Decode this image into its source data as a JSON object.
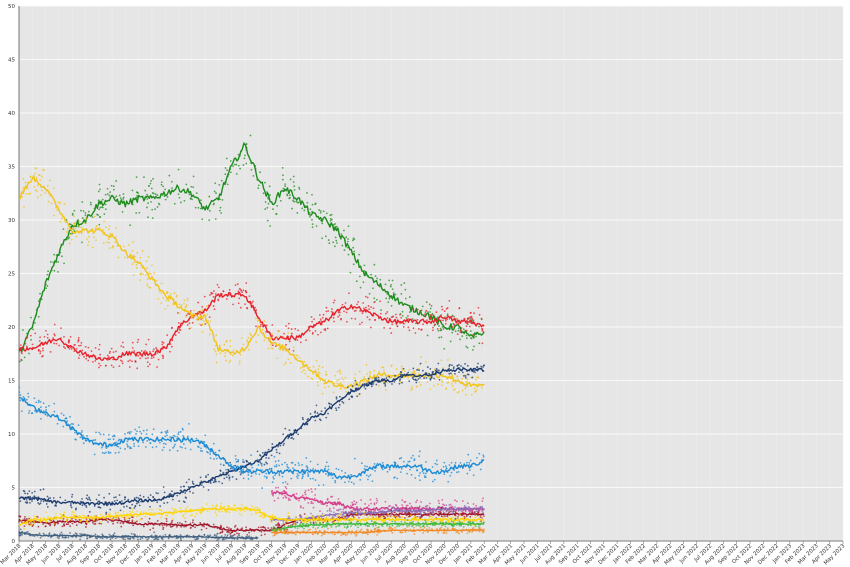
{
  "chart_data": {
    "type": "line",
    "title": "",
    "xlabel": "",
    "ylabel": "",
    "ylim": [
      0,
      50
    ],
    "yticks": [
      0,
      5,
      10,
      15,
      20,
      25,
      30,
      35,
      40,
      45,
      50
    ],
    "grid": true,
    "legend": "none",
    "background_color": "#e6e6e6",
    "x_start_month": "Mar 2018",
    "data_end_month": "Feb 2021",
    "x_tick_labels": [
      "Mar 2018",
      "Apr 2018",
      "May 2018",
      "Jun 2018",
      "Jul 2018",
      "Aug 2018",
      "Sep 2018",
      "Oct 2018",
      "Nov 2018",
      "Dec 2018",
      "Jan 2019",
      "Feb 2019",
      "Mar 2019",
      "Apr 2019",
      "May 2019",
      "Jun 2019",
      "Jul 2019",
      "Aug 2019",
      "Sep 2019",
      "Oct 2019",
      "Nov 2019",
      "Dec 2019",
      "Jan 2020",
      "Feb 2020",
      "Mar 2020",
      "Apr 2020",
      "May 2020",
      "Jun 2020",
      "Jul 2020",
      "Aug 2020",
      "Sep 2020",
      "Oct 2020",
      "Nov 2020",
      "Dec 2020",
      "Jan 2021",
      "Feb 2021",
      "Mar 2021",
      "Apr 2021",
      "May 2021",
      "Jun 2021",
      "Jul 2021",
      "Aug 2021",
      "Sep 2021",
      "Oct 2021",
      "Nov 2021",
      "Dec 2021",
      "Jan 2022",
      "Feb 2022",
      "Mar 2022",
      "Apr 2022",
      "May 2022",
      "Jun 2022",
      "Jul 2022",
      "Aug 2022",
      "Sep 2022",
      "Oct 2022",
      "Nov 2022",
      "Dec 2022",
      "Jan 2023",
      "Feb 2023",
      "Mar 2023",
      "Apr 2023",
      "May 2023"
    ],
    "series": [
      {
        "color": "#1e8c1e",
        "x": [
          "Mar 2018",
          "Apr 2018",
          "May 2018",
          "Jun 2018",
          "Jul 2018",
          "Aug 2018",
          "Sep 2018",
          "Oct 2018",
          "Nov 2018",
          "Dec 2018",
          "Jan 2019",
          "Feb 2019",
          "Mar 2019",
          "Apr 2019",
          "May 2019",
          "Jun 2019",
          "Jul 2019",
          "Aug 2019",
          "Sep 2019",
          "Oct 2019",
          "Nov 2019",
          "Dec 2019",
          "Jan 2020",
          "Feb 2020",
          "Mar 2020",
          "Apr 2020",
          "May 2020",
          "Jun 2020",
          "Jul 2020",
          "Aug 2020",
          "Sep 2020",
          "Oct 2020",
          "Nov 2020",
          "Dec 2020",
          "Jan 2021",
          "Feb 2021"
        ],
        "values": [
          17.5,
          20,
          24,
          27,
          29.5,
          30,
          31.5,
          32,
          31.5,
          32,
          32,
          32.5,
          33,
          32.5,
          31,
          32,
          35,
          37,
          34,
          31.5,
          33,
          32,
          30.5,
          30,
          29,
          27,
          25,
          24,
          23,
          22,
          21.5,
          21,
          20,
          20,
          19,
          19.5
        ],
        "scatter_spread": 1.8
      },
      {
        "color": "#e8202a",
        "x": [
          "Mar 2018",
          "Apr 2018",
          "May 2018",
          "Jun 2018",
          "Jul 2018",
          "Aug 2018",
          "Sep 2018",
          "Oct 2018",
          "Nov 2018",
          "Dec 2018",
          "Jan 2019",
          "Feb 2019",
          "Mar 2019",
          "Apr 2019",
          "May 2019",
          "Jun 2019",
          "Jul 2019",
          "Aug 2019",
          "Sep 2019",
          "Oct 2019",
          "Nov 2019",
          "Dec 2019",
          "Jan 2020",
          "Feb 2020",
          "Mar 2020",
          "Apr 2020",
          "May 2020",
          "Jun 2020",
          "Jul 2020",
          "Aug 2020",
          "Sep 2020",
          "Oct 2020",
          "Nov 2020",
          "Dec 2020",
          "Jan 2021",
          "Feb 2021"
        ],
        "values": [
          18,
          18,
          18.5,
          19,
          18,
          17.5,
          17,
          17,
          17.5,
          17.5,
          17.5,
          18,
          20,
          21,
          21.5,
          23,
          23,
          23,
          21,
          19,
          19,
          19,
          20,
          20.5,
          21.5,
          22,
          21.5,
          21,
          20.5,
          20.5,
          20.5,
          20.5,
          21,
          20.5,
          20.5,
          20
        ],
        "scatter_spread": 1.3
      },
      {
        "color": "#f2c318",
        "x": [
          "Mar 2018",
          "Apr 2018",
          "May 2018",
          "Jun 2018",
          "Jul 2018",
          "Aug 2018",
          "Sep 2018",
          "Oct 2018",
          "Nov 2018",
          "Dec 2018",
          "Jan 2019",
          "Feb 2019",
          "Mar 2019",
          "Apr 2019",
          "May 2019",
          "Jun 2019",
          "Jul 2019",
          "Aug 2019",
          "Sep 2019",
          "Oct 2019",
          "Nov 2019",
          "Dec 2019",
          "Jan 2020",
          "Feb 2020",
          "Mar 2020",
          "Apr 2020",
          "May 2020",
          "Jun 2020",
          "Jul 2020",
          "Aug 2020",
          "Sep 2020",
          "Oct 2020",
          "Nov 2020",
          "Dec 2020",
          "Jan 2021",
          "Feb 2021"
        ],
        "values": [
          32,
          34,
          33,
          31,
          29,
          29,
          29,
          28.5,
          27,
          26,
          24.5,
          23,
          22,
          21,
          21,
          18,
          17.5,
          18,
          20,
          18.5,
          18,
          17,
          16,
          15,
          14.5,
          14.5,
          15,
          15.5,
          15.5,
          15.5,
          15.5,
          15.5,
          15.5,
          15,
          14.5,
          14.5
        ],
        "scatter_spread": 1.4
      },
      {
        "color": "#1a3a6e",
        "x": [
          "Mar 2018",
          "Apr 2018",
          "May 2018",
          "Jun 2018",
          "Jul 2018",
          "Aug 2018",
          "Sep 2018",
          "Oct 2018",
          "Nov 2018",
          "Dec 2018",
          "Jan 2019",
          "Feb 2019",
          "Mar 2019",
          "Apr 2019",
          "May 2019",
          "Jun 2019",
          "Jul 2019",
          "Aug 2019",
          "Sep 2019",
          "Oct 2019",
          "Nov 2019",
          "Dec 2019",
          "Jan 2020",
          "Feb 2020",
          "Mar 2020",
          "Apr 2020",
          "May 2020",
          "Jun 2020",
          "Jul 2020",
          "Aug 2020",
          "Sep 2020",
          "Oct 2020",
          "Nov 2020",
          "Dec 2020",
          "Jan 2021",
          "Feb 2021"
        ],
        "values": [
          4,
          4,
          3.8,
          3.6,
          3.6,
          3.5,
          3.5,
          3.5,
          3.6,
          3.8,
          3.8,
          4,
          4.5,
          5,
          5.5,
          6,
          6.5,
          7,
          7.5,
          8.5,
          9.5,
          10.5,
          11.5,
          12,
          13,
          14,
          14.5,
          15,
          15,
          15.5,
          15.5,
          15.5,
          16,
          16,
          16,
          16
        ],
        "scatter_spread": 0.8
      },
      {
        "color": "#1a8ad4",
        "x": [
          "Mar 2018",
          "Apr 2018",
          "May 2018",
          "Jun 2018",
          "Jul 2018",
          "Aug 2018",
          "Sep 2018",
          "Oct 2018",
          "Nov 2018",
          "Dec 2018",
          "Jan 2019",
          "Feb 2019",
          "Mar 2019",
          "Apr 2019",
          "May 2019",
          "Jun 2019",
          "Jul 2019",
          "Aug 2019",
          "Sep 2019",
          "Oct 2019",
          "Nov 2019",
          "Dec 2019",
          "Jan 2020",
          "Feb 2020",
          "Mar 2020",
          "Apr 2020",
          "May 2020",
          "Jun 2020",
          "Jul 2020",
          "Aug 2020",
          "Sep 2020",
          "Oct 2020",
          "Nov 2020",
          "Dec 2020",
          "Jan 2021",
          "Feb 2021"
        ],
        "values": [
          13.5,
          12.5,
          12,
          11.5,
          10.5,
          9.5,
          9,
          9,
          9.5,
          9.5,
          9.5,
          9.5,
          9.5,
          9.5,
          9,
          8,
          7,
          6.5,
          6.5,
          6.5,
          6.5,
          6.5,
          6.5,
          6.5,
          6,
          6,
          6.5,
          7,
          7,
          7,
          7,
          6.5,
          6.5,
          7,
          7,
          7.5
        ],
        "scatter_spread": 1.2
      },
      {
        "color": "#d63b8a",
        "x": [
          "Oct 2019",
          "Nov 2019",
          "Dec 2019",
          "Jan 2020",
          "Feb 2020",
          "Mar 2020",
          "Apr 2020",
          "May 2020",
          "Jun 2020",
          "Jul 2020",
          "Aug 2020",
          "Sep 2020",
          "Oct 2020",
          "Nov 2020",
          "Dec 2020",
          "Jan 2021",
          "Feb 2021"
        ],
        "values": [
          4.5,
          4.5,
          4,
          4,
          3.5,
          3.5,
          3,
          3,
          3,
          3,
          3,
          3,
          3,
          3,
          3,
          3,
          3
        ],
        "scatter_spread": 0.9
      },
      {
        "color": "#a0142a",
        "x": [
          "Mar 2018",
          "Apr 2018",
          "May 2018",
          "Jun 2018",
          "Jul 2018",
          "Aug 2018",
          "Sep 2018",
          "Oct 2018",
          "Nov 2018",
          "Dec 2018",
          "Jan 2019",
          "Feb 2019",
          "Mar 2019",
          "Apr 2019",
          "May 2019",
          "Jun 2019",
          "Jul 2019",
          "Aug 2019",
          "Sep 2019",
          "Oct 2019",
          "Nov 2019",
          "Dec 2019",
          "Jan 2020",
          "Feb 2020",
          "Mar 2020",
          "Apr 2020",
          "May 2020",
          "Jun 2020",
          "Jul 2020",
          "Aug 2020",
          "Sep 2020",
          "Oct 2020",
          "Nov 2020",
          "Dec 2020",
          "Jan 2021",
          "Feb 2021"
        ],
        "values": [
          2,
          1.8,
          1.7,
          1.8,
          1.8,
          1.8,
          2,
          2,
          1.8,
          1.6,
          1.6,
          1.6,
          1.5,
          1.5,
          1.5,
          1.2,
          1,
          1,
          1,
          1,
          1.5,
          2,
          2,
          2,
          2,
          2.5,
          2.5,
          2.5,
          2.5,
          2.5,
          2.5,
          2.5,
          2.5,
          2.5,
          2.5,
          2.5
        ],
        "scatter_spread": 0.5
      },
      {
        "color": "#8b6fb8",
        "x": [
          "Oct 2019",
          "Nov 2019",
          "Dec 2019",
          "Jan 2020",
          "Feb 2020",
          "Mar 2020",
          "Apr 2020",
          "May 2020",
          "Jun 2020",
          "Jul 2020",
          "Aug 2020",
          "Sep 2020",
          "Oct 2020",
          "Nov 2020",
          "Dec 2020",
          "Jan 2021",
          "Feb 2021"
        ],
        "values": [
          2,
          2,
          2,
          2.2,
          2.4,
          2.5,
          2.6,
          2.6,
          2.7,
          2.8,
          2.8,
          2.8,
          2.9,
          3,
          3,
          3,
          3
        ],
        "scatter_spread": 0.4
      },
      {
        "color": "#ffd500",
        "x": [
          "Mar 2018",
          "Apr 2018",
          "May 2018",
          "Jun 2018",
          "Jul 2018",
          "Aug 2018",
          "Sep 2018",
          "Oct 2018",
          "Nov 2018",
          "Dec 2018",
          "Jan 2019",
          "Feb 2019",
          "Mar 2019",
          "Apr 2019",
          "May 2019",
          "Jun 2019",
          "Jul 2019",
          "Aug 2019",
          "Sep 2019",
          "Oct 2019",
          "Nov 2019",
          "Dec 2019",
          "Jan 2020",
          "Feb 2020",
          "Mar 2020",
          "Apr 2020",
          "May 2020",
          "Jun 2020",
          "Jul 2020",
          "Aug 2020",
          "Sep 2020",
          "Oct 2020",
          "Nov 2020",
          "Dec 2020",
          "Jan 2021",
          "Feb 2021"
        ],
        "values": [
          1.5,
          2,
          2,
          2.2,
          2.2,
          2.2,
          2.2,
          2.3,
          2.4,
          2.5,
          2.5,
          2.6,
          2.7,
          2.8,
          3,
          3,
          3,
          3,
          2.8,
          2.2,
          2,
          2,
          2,
          2,
          2,
          2,
          2,
          2,
          2,
          2,
          2,
          2,
          2,
          2,
          2,
          2
        ],
        "scatter_spread": 0.5
      },
      {
        "color": "#3cb83c",
        "x": [
          "Oct 2019",
          "Nov 2019",
          "Dec 2019",
          "Jan 2020",
          "Feb 2020",
          "Mar 2020",
          "Apr 2020",
          "May 2020",
          "Jun 2020",
          "Jul 2020",
          "Aug 2020",
          "Sep 2020",
          "Oct 2020",
          "Nov 2020",
          "Dec 2020",
          "Jan 2021",
          "Feb 2021"
        ],
        "values": [
          1,
          1.2,
          1.4,
          1.5,
          1.5,
          1.6,
          1.6,
          1.6,
          1.6,
          1.6,
          1.6,
          1.6,
          1.6,
          1.6,
          1.6,
          1.6,
          1.6
        ],
        "scatter_spread": 0.3
      },
      {
        "color": "#f08a24",
        "x": [
          "Oct 2019",
          "Nov 2019",
          "Dec 2019",
          "Jan 2020",
          "Feb 2020",
          "Mar 2020",
          "Apr 2020",
          "May 2020",
          "Jun 2020",
          "Jul 2020",
          "Aug 2020",
          "Sep 2020",
          "Oct 2020",
          "Nov 2020",
          "Dec 2020",
          "Jan 2021",
          "Feb 2021"
        ],
        "values": [
          0.8,
          0.8,
          0.8,
          0.8,
          0.8,
          0.8,
          0.8,
          0.8,
          0.9,
          1,
          1,
          1,
          1,
          1,
          1,
          1,
          1
        ],
        "scatter_spread": 0.3
      },
      {
        "color": "#3f5f7f",
        "x": [
          "Mar 2018",
          "Apr 2018",
          "May 2018",
          "Jun 2018",
          "Jul 2018",
          "Aug 2018",
          "Sep 2018",
          "Oct 2018",
          "Nov 2018",
          "Dec 2018",
          "Jan 2019",
          "Feb 2019",
          "Mar 2019",
          "Apr 2019",
          "May 2019",
          "Jun 2019",
          "Jul 2019",
          "Aug 2019",
          "Sep 2019"
        ],
        "values": [
          0.8,
          0.6,
          0.5,
          0.5,
          0.5,
          0.5,
          0.4,
          0.4,
          0.4,
          0.4,
          0.4,
          0.4,
          0.4,
          0.4,
          0.4,
          0.3,
          0.3,
          0.3,
          0.3
        ],
        "scatter_spread": 0.3
      }
    ]
  }
}
